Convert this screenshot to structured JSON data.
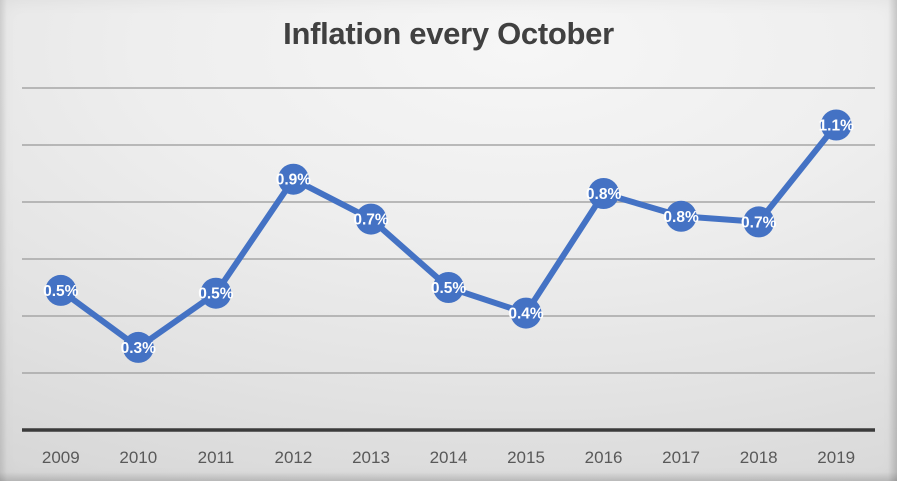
{
  "chart_data": {
    "type": "line",
    "title": "Inflation every October",
    "categories": [
      "2009",
      "2010",
      "2011",
      "2012",
      "2013",
      "2014",
      "2015",
      "2016",
      "2017",
      "2018",
      "2019"
    ],
    "series": [
      {
        "name": "Inflation",
        "values": [
          0.5,
          0.3,
          0.5,
          0.9,
          0.7,
          0.5,
          0.4,
          0.8,
          0.8,
          0.7,
          1.1
        ],
        "point_labels": [
          "0.5%",
          "0.3%",
          "0.5%",
          "0.9%",
          "0.7%",
          "0.5%",
          "0.4%",
          "0.8%",
          "0.8%",
          "0.7%",
          "1.1%"
        ],
        "plot_values": [
          0.49,
          0.29,
          0.48,
          0.88,
          0.74,
          0.5,
          0.41,
          0.83,
          0.75,
          0.73,
          1.07
        ]
      }
    ],
    "xlabel": "",
    "ylabel": "",
    "ylim": [
      0,
      1.2
    ],
    "gridline_step": 0.2,
    "grid": true,
    "legend": "none",
    "y_axis_labels_visible": false,
    "marker": "circle"
  },
  "colors": {
    "line": "#4472C4",
    "marker_fill": "#4472C4",
    "data_label_text": "#FFFFFF",
    "title_text": "#404040",
    "axis_label_text": "#595959",
    "gridline": "#A6A6A6",
    "axis_line": "#3B3B3B"
  }
}
